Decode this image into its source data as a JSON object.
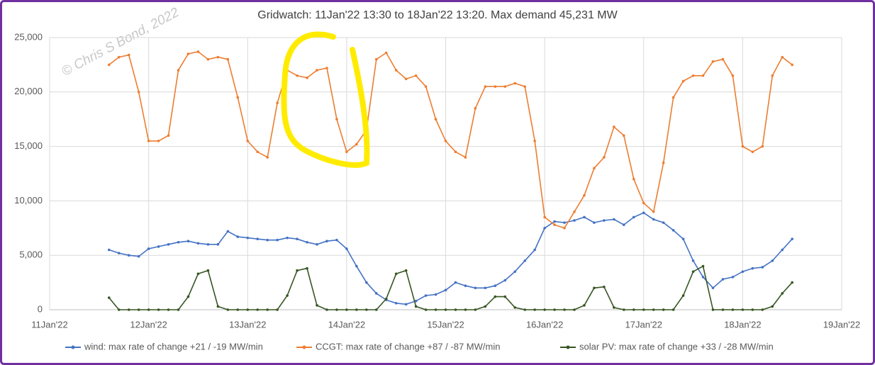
{
  "chart_data": {
    "type": "line",
    "title": "Gridwatch:  11Jan'22 13:30  to 18Jan'22 13:20.   Max demand 45,231 MW",
    "annotation": "© Chris S Bond, 2022",
    "x": [
      11.6,
      11.7,
      11.8,
      11.9,
      12.0,
      12.1,
      12.2,
      12.3,
      12.4,
      12.5,
      12.6,
      12.7,
      12.8,
      12.9,
      13.0,
      13.1,
      13.2,
      13.3,
      13.4,
      13.5,
      13.6,
      13.7,
      13.8,
      13.9,
      14.0,
      14.1,
      14.2,
      14.3,
      14.4,
      14.5,
      14.6,
      14.7,
      14.8,
      14.9,
      15.0,
      15.1,
      15.2,
      15.3,
      15.4,
      15.5,
      15.6,
      15.7,
      15.8,
      15.9,
      16.0,
      16.1,
      16.2,
      16.3,
      16.4,
      16.5,
      16.6,
      16.7,
      16.8,
      16.9,
      17.0,
      17.1,
      17.2,
      17.3,
      17.4,
      17.5,
      17.6,
      17.7,
      17.8,
      17.9,
      18.0,
      18.1,
      18.2,
      18.3,
      18.4,
      18.5
    ],
    "series": [
      {
        "name": "wind: max rate of change +21 / -19 MW/min",
        "color": "#4472c4",
        "values": [
          5500,
          5200,
          5000,
          4900,
          5600,
          5800,
          6000,
          6200,
          6300,
          6100,
          6000,
          6000,
          7200,
          6700,
          6600,
          6500,
          6400,
          6400,
          6600,
          6500,
          6200,
          6000,
          6300,
          6400,
          5600,
          4000,
          2500,
          1500,
          900,
          600,
          500,
          800,
          1300,
          1400,
          1800,
          2500,
          2200,
          2000,
          2000,
          2200,
          2700,
          3500,
          4500,
          5500,
          7500,
          8100,
          8000,
          8200,
          8500,
          8000,
          8200,
          8300,
          7800,
          8500,
          8900,
          8300,
          8000,
          7300,
          6500,
          4500,
          3000,
          2000,
          2800,
          3000,
          3500,
          3800,
          3900,
          4500,
          5500,
          6500
        ]
      },
      {
        "name": "CCGT: max rate of change +87 / -87 MW/min",
        "color": "#ed7d31",
        "values": [
          22500,
          23200,
          23400,
          20000,
          15500,
          15500,
          16000,
          22000,
          23500,
          23700,
          23000,
          23200,
          23000,
          19500,
          15500,
          14500,
          14000,
          19000,
          22000,
          21500,
          21300,
          22000,
          22200,
          17500,
          14500,
          15200,
          16500,
          23000,
          23600,
          22000,
          21200,
          21500,
          20500,
          17500,
          15500,
          14500,
          14000,
          18500,
          20500,
          20500,
          20500,
          20800,
          20500,
          15500,
          8500,
          7800,
          7500,
          9000,
          10500,
          13000,
          14000,
          16800,
          16000,
          12000,
          9800,
          9000,
          13500,
          19500,
          21000,
          21500,
          21500,
          22800,
          23000,
          21500,
          15000,
          14500,
          15000,
          21500,
          23200,
          22500
        ]
      },
      {
        "name": "solar PV: max rate of change +33 / -28 MW/min",
        "color": "#375623",
        "values": [
          1100,
          0,
          0,
          0,
          0,
          0,
          0,
          0,
          1200,
          3300,
          3600,
          300,
          0,
          0,
          0,
          0,
          0,
          0,
          1300,
          3600,
          3800,
          400,
          0,
          0,
          0,
          0,
          0,
          0,
          1000,
          3300,
          3600,
          300,
          0,
          0,
          0,
          0,
          0,
          0,
          300,
          1200,
          1200,
          200,
          0,
          0,
          0,
          0,
          0,
          0,
          400,
          2000,
          2100,
          200,
          0,
          0,
          0,
          0,
          0,
          0,
          1300,
          3500,
          4000,
          0,
          0,
          0,
          0,
          0,
          0,
          300,
          1500,
          2500
        ]
      }
    ],
    "xlim": [
      11,
      19
    ],
    "xticks": [
      {
        "value": 11,
        "label": "11Jan'22"
      },
      {
        "value": 12,
        "label": "12Jan'22"
      },
      {
        "value": 13,
        "label": "13Jan'22"
      },
      {
        "value": 14,
        "label": "14Jan'22"
      },
      {
        "value": 15,
        "label": "15Jan'22"
      },
      {
        "value": 16,
        "label": "16Jan'22"
      },
      {
        "value": 17,
        "label": "17Jan'22"
      },
      {
        "value": 18,
        "label": "18Jan'22"
      },
      {
        "value": 19,
        "label": "19Jan'22"
      }
    ],
    "ylim": [
      0,
      25000
    ],
    "yticks": [
      0,
      {
        "value": 5000,
        "label": "5,000"
      },
      {
        "value": 10000,
        "label": "10,000"
      },
      {
        "value": 15000,
        "label": "15,000"
      },
      {
        "value": 20000,
        "label": "20,000"
      },
      {
        "value": 25000,
        "label": "25,000"
      }
    ],
    "grid": true,
    "legend": "bottom"
  }
}
